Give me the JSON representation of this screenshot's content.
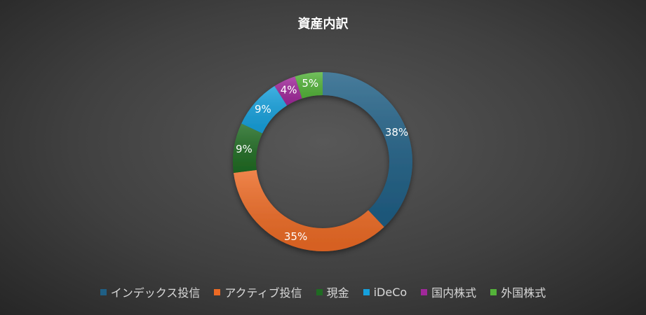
{
  "chart_data": {
    "type": "pie",
    "title": "資産内訳",
    "donut": true,
    "legend_position": "bottom",
    "slices": [
      {
        "label": "インデックス投信",
        "value": 38,
        "value_label": "38%",
        "color": "#1f5f85"
      },
      {
        "label": "アクティブ投信",
        "value": 35,
        "value_label": "35%",
        "color": "#ed6a24"
      },
      {
        "label": "現金",
        "value": 9,
        "value_label": "9%",
        "color": "#1f6b22"
      },
      {
        "label": "iDeCo",
        "value": 9,
        "value_label": "9%",
        "color": "#16a0dc"
      },
      {
        "label": "国内株式",
        "value": 4,
        "value_label": "4%",
        "color": "#a0289a"
      },
      {
        "label": "外国株式",
        "value": 5,
        "value_label": "5%",
        "color": "#54b33a"
      }
    ]
  }
}
